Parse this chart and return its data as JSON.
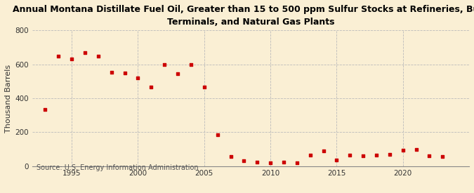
{
  "title": "Annual Montana Distillate Fuel Oil, Greater than 15 to 500 ppm Sulfur Stocks at Refineries, Bulk\nTerminals, and Natural Gas Plants",
  "ylabel": "Thousand Barrels",
  "source": "Source: U.S. Energy Information Administration",
  "background_color": "#faefd4",
  "plot_background_color": "#faefd4",
  "dot_color": "#cc0000",
  "years": [
    1993,
    1994,
    1995,
    1996,
    1997,
    1998,
    1999,
    2000,
    2001,
    2002,
    2003,
    2004,
    2005,
    2006,
    2007,
    2008,
    2009,
    2010,
    2011,
    2012,
    2013,
    2014,
    2015,
    2016,
    2017,
    2018,
    2019,
    2020,
    2021,
    2022,
    2023
  ],
  "values": [
    335,
    650,
    630,
    670,
    650,
    555,
    548,
    520,
    465,
    600,
    545,
    600,
    465,
    185,
    55,
    30,
    25,
    20,
    25,
    20,
    65,
    90,
    35,
    65,
    60,
    65,
    70,
    95,
    100,
    60,
    55
  ],
  "xlim": [
    1992,
    2025
  ],
  "ylim": [
    0,
    800
  ],
  "yticks": [
    0,
    200,
    400,
    600,
    800
  ],
  "xticks": [
    1995,
    2000,
    2005,
    2010,
    2015,
    2020
  ],
  "grid_color": "#bbbbbb",
  "title_fontsize": 9.0,
  "axis_fontsize": 8.0,
  "tick_fontsize": 7.5,
  "source_fontsize": 7.0
}
